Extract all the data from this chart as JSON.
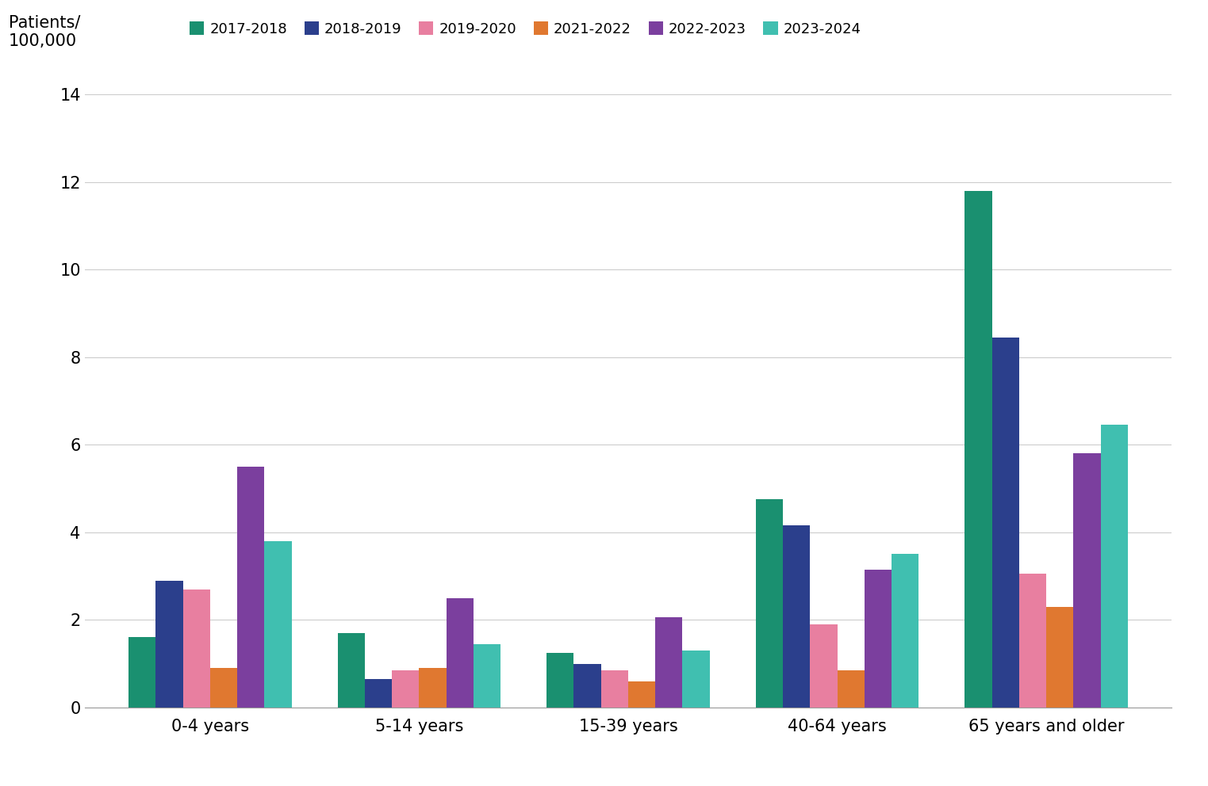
{
  "categories": [
    "0-4 years",
    "5-14 years",
    "15-39 years",
    "40-64 years",
    "65 years and older"
  ],
  "seasons": [
    "2017-2018",
    "2018-2019",
    "2019-2020",
    "2021-2022",
    "2022-2023",
    "2023-2024"
  ],
  "colors": [
    "#1a9070",
    "#2b3f8c",
    "#e87fa0",
    "#e07830",
    "#7b3f9e",
    "#40bfb0"
  ],
  "values": {
    "0-4 years": [
      1.6,
      2.9,
      2.7,
      0.9,
      5.5,
      3.8
    ],
    "5-14 years": [
      1.7,
      0.65,
      0.85,
      0.9,
      2.5,
      1.45
    ],
    "15-39 years": [
      1.25,
      1.0,
      0.85,
      0.6,
      2.05,
      1.3
    ],
    "40-64 years": [
      4.75,
      4.15,
      1.9,
      0.85,
      3.15,
      3.5
    ],
    "65 years and older": [
      11.8,
      8.45,
      3.05,
      2.3,
      5.8,
      6.45
    ]
  },
  "ylim": [
    0,
    14
  ],
  "yticks": [
    0,
    2,
    4,
    6,
    8,
    10,
    12,
    14
  ],
  "background_color": "#ffffff",
  "grid_color": "#cccccc",
  "bar_width": 0.13,
  "ylabel_line1": "Patients/",
  "ylabel_line2": "100,000"
}
